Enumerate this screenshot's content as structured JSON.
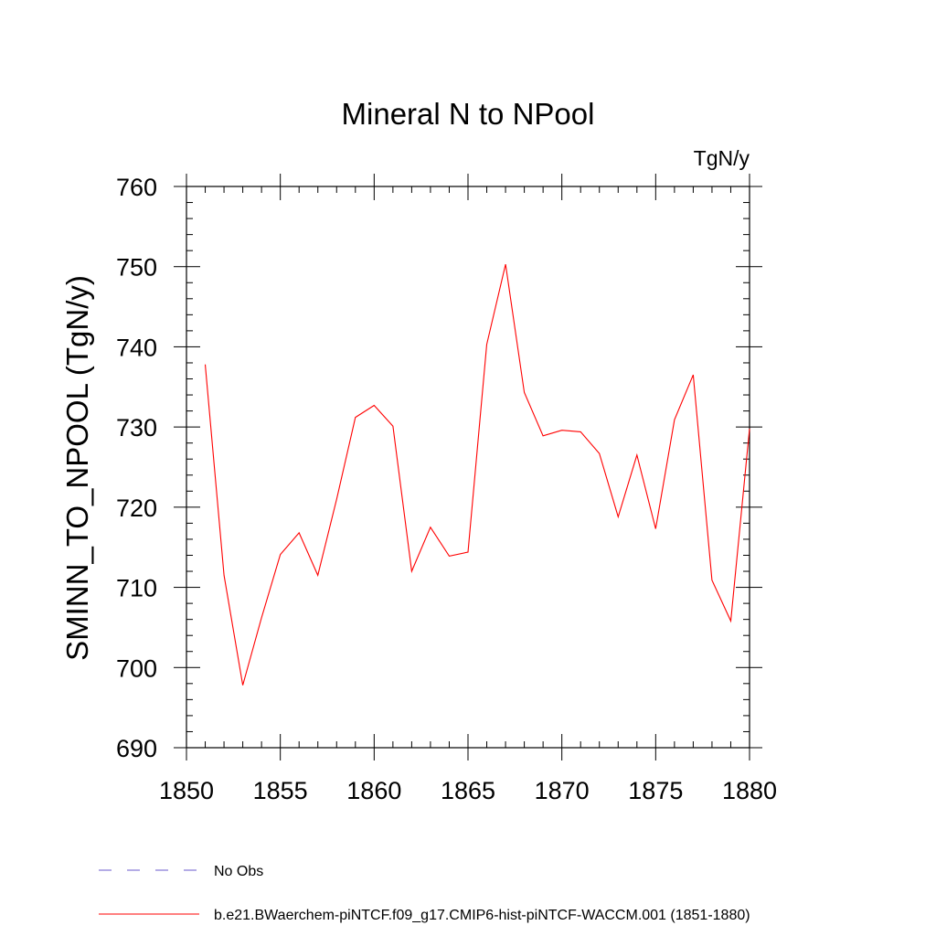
{
  "chart_data": {
    "type": "line",
    "title": "Mineral N to NPool",
    "units": "TgN/y",
    "ylabel": "SMINN_TO_NPOOL  (TgN/y)",
    "xlabel": "",
    "xlim": [
      1850,
      1880
    ],
    "ylim": [
      690,
      760
    ],
    "xticks": [
      1850,
      1855,
      1860,
      1865,
      1870,
      1875,
      1880
    ],
    "yticks": [
      690,
      700,
      710,
      720,
      730,
      740,
      750,
      760
    ],
    "grid": false,
    "legend_position": "bottom-left",
    "series": [
      {
        "name": "b.e21.BWaerchem-piNTCF.f09_g17.CMIP6-hist-piNTCF-WACCM.001 (1851-1880)",
        "color": "#ff0000",
        "dash": "solid",
        "x": [
          1851,
          1852,
          1853,
          1854,
          1855,
          1856,
          1857,
          1858,
          1859,
          1860,
          1861,
          1862,
          1863,
          1864,
          1865,
          1866,
          1867,
          1868,
          1869,
          1870,
          1871,
          1872,
          1873,
          1874,
          1875,
          1876,
          1877,
          1878,
          1879,
          1880
        ],
        "values": [
          737.8,
          711.5,
          697.8,
          706.2,
          714.1,
          716.8,
          711.5,
          721.0,
          731.2,
          732.7,
          730.1,
          712.0,
          717.5,
          713.9,
          714.4,
          740.3,
          750.3,
          734.3,
          728.9,
          729.6,
          729.4,
          726.7,
          718.8,
          726.5,
          717.3,
          730.9,
          736.5,
          710.9,
          705.8,
          729.8
        ]
      }
    ],
    "legend": [
      {
        "label": "No Obs",
        "color": "#6a5acd",
        "dash": "dashed"
      },
      {
        "label": "b.e21.BWaerchem-piNTCF.f09_g17.CMIP6-hist-piNTCF-WACCM.001 (1851-1880)",
        "color": "#ff0000",
        "dash": "solid"
      }
    ]
  }
}
